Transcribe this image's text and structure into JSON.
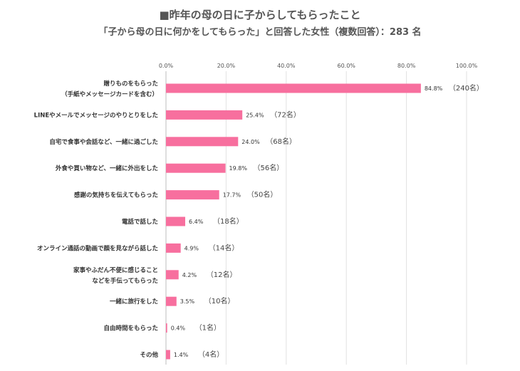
{
  "title": "■昨年の母の日に子からしてもらったこと",
  "subtitle": "「子から母の日に何かをしてもらった」と回答した女性（複数回答）：283 名",
  "chart_data": {
    "type": "bar",
    "orientation": "horizontal",
    "xlim": [
      0,
      100
    ],
    "x_ticks": [
      "0.0%",
      "20.0%",
      "40.0%",
      "60.0%",
      "80.0%",
      "100.0%"
    ],
    "grid": true,
    "bar_color": "#f76f9e",
    "categories": [
      [
        "贈りものをもらった",
        "（手紙やメッセージカードを含む）"
      ],
      [
        "LINEやメールでメッセージのやりとりをした"
      ],
      [
        "自宅で食事や会話など、一緒に過ごした"
      ],
      [
        "外食や買い物など、一緒に外出をした"
      ],
      [
        "感謝の気持ちを伝えてもらった"
      ],
      [
        "電話で話した"
      ],
      [
        "オンライン通話の動画で顔を見ながら話した"
      ],
      [
        "家事やふだん不便に感じること",
        "などを手伝ってもらった"
      ],
      [
        "一緒に旅行をした"
      ],
      [
        "自由時間をもらった"
      ],
      [
        "その他"
      ]
    ],
    "values": [
      84.8,
      25.4,
      24.0,
      19.8,
      17.7,
      6.4,
      4.9,
      4.2,
      3.5,
      0.4,
      1.4
    ],
    "value_labels": [
      "84.8%",
      "25.4%",
      "24.0%",
      "19.8%",
      "17.7%",
      "6.4%",
      "4.9%",
      "4.2%",
      "3.5%",
      "0.4%",
      "1.4%"
    ],
    "count_labels": [
      "（240名）",
      "（72名）",
      "（68名）",
      "（56名）",
      "（50名）",
      "（18名）",
      "（14名）",
      "（12名）",
      "（10名）",
      "（1名）",
      "（4名）"
    ]
  }
}
